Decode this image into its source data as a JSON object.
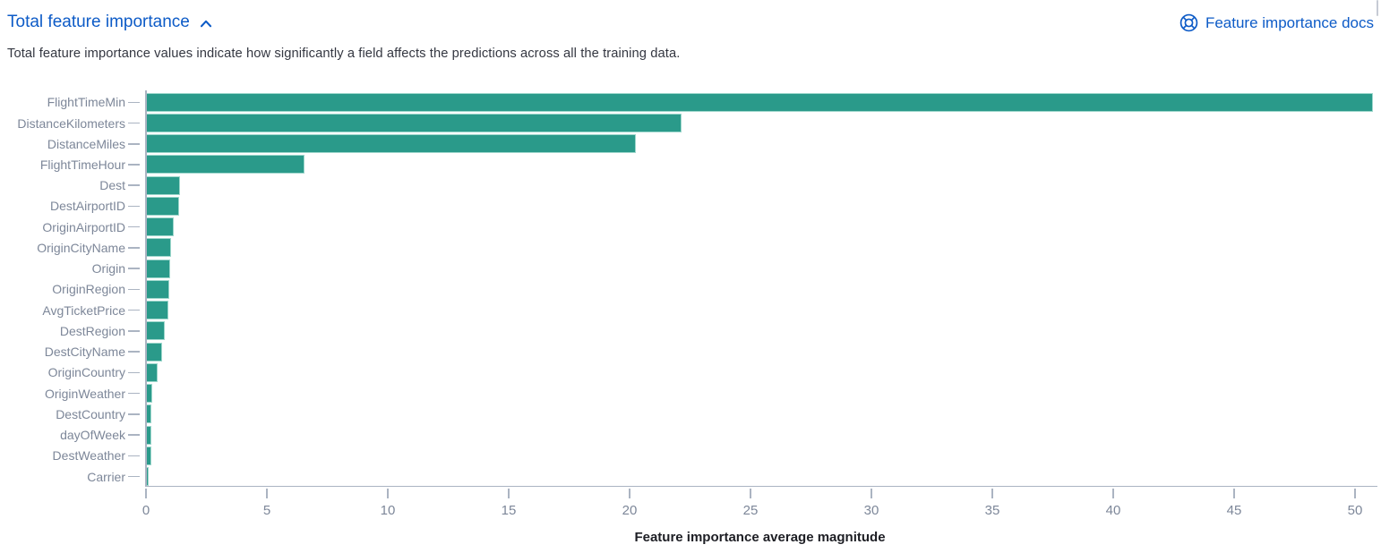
{
  "header": {
    "title": "Total feature importance",
    "docs_link_label": "Feature importance docs"
  },
  "description": "Total feature importance values indicate how significantly a field affects the predictions across all the training data.",
  "colors": {
    "bar": "#2a9a8a",
    "link": "#0d5bc7",
    "axis_line": "#abb4c2",
    "axis_label": "#7d8799",
    "description_text": "#343741"
  },
  "icons": {
    "collapse": "chevron-up-icon",
    "docs": "lifebuoy-help-icon"
  },
  "chart_data": {
    "type": "bar",
    "orientation": "horizontal",
    "title": "",
    "xlabel": "Feature importance average magnitude",
    "ylabel": "",
    "categories": [
      "FlightTimeMin",
      "DistanceKilometers",
      "DistanceMiles",
      "FlightTimeHour",
      "Dest",
      "DestAirportID",
      "OriginAirportID",
      "OriginCityName",
      "Origin",
      "OriginRegion",
      "AvgTicketPrice",
      "DestRegion",
      "DestCityName",
      "OriginCountry",
      "OriginWeather",
      "DestCountry",
      "dayOfWeek",
      "DestWeather",
      "Carrier"
    ],
    "values": [
      50.7,
      22.1,
      20.2,
      6.5,
      1.35,
      1.33,
      1.08,
      0.97,
      0.96,
      0.89,
      0.86,
      0.71,
      0.6,
      0.43,
      0.21,
      0.18,
      0.17,
      0.15,
      0.07
    ],
    "xticks": [
      0,
      5,
      10,
      15,
      20,
      25,
      30,
      35,
      40,
      45,
      50
    ],
    "xlim": [
      0,
      50.85
    ],
    "grid": false,
    "legend": "none"
  }
}
